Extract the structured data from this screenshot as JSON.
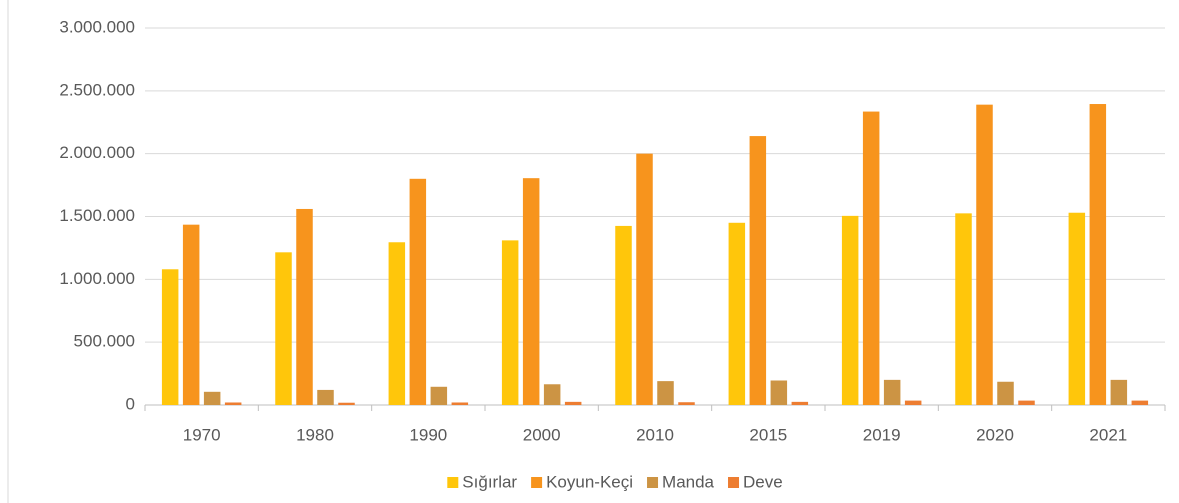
{
  "chart_data": {
    "type": "bar",
    "categories": [
      "1970",
      "1980",
      "1990",
      "2000",
      "2010",
      "2015",
      "2019",
      "2020",
      "2021"
    ],
    "series": [
      {
        "name": "Sığırlar",
        "color": "#ffc60b",
        "values": [
          1080000,
          1215000,
          1295000,
          1310000,
          1425000,
          1450000,
          1505000,
          1525000,
          1530000
        ]
      },
      {
        "name": "Koyun-Keçi",
        "color": "#f7941d",
        "values": [
          1435000,
          1560000,
          1800000,
          1805000,
          2000000,
          2140000,
          2335000,
          2390000,
          2395000
        ]
      },
      {
        "name": "Manda",
        "color": "#cc9444",
        "values": [
          105000,
          120000,
          145000,
          165000,
          190000,
          195000,
          200000,
          185000,
          200000
        ]
      },
      {
        "name": "Deve",
        "color": "#ed7d31",
        "values": [
          20000,
          18000,
          20000,
          25000,
          22000,
          25000,
          35000,
          35000,
          35000
        ]
      }
    ],
    "ylim": [
      0,
      3000000
    ],
    "yticks": [
      0,
      {
        "value": 500000,
        "label": "500.000"
      },
      {
        "value": 1000000,
        "label": "1.000.000"
      },
      {
        "value": 1500000,
        "label": "1.500.000"
      },
      {
        "value": 2000000,
        "label": "2.000.000"
      },
      {
        "value": 2500000,
        "label": "2.500.000"
      },
      {
        "value": 3000000,
        "label": "3.000.000"
      }
    ],
    "grid": true,
    "legend": "bottom"
  }
}
